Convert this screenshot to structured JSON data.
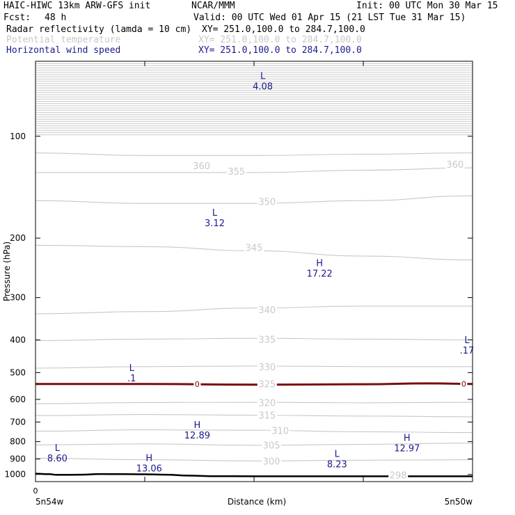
{
  "header": {
    "title": "HAIC-HIWC 13km ARW-GFS init",
    "org": "NCAR/MMM",
    "init": "Init: 00 UTC Mon 30 Mar 15",
    "fcst_label": "Fcst:",
    "fcst_value": "48 h",
    "valid": "Valid: 00 UTC Wed 01 Apr 15 (21 LST Tue 31 Mar 15)",
    "fields": [
      {
        "name": "Radar reflectivity (lamda = 10 cm)",
        "xy": "XY= 251.0,100.0 to 284.7,100.0",
        "color": "#000000"
      },
      {
        "name": "Potential temperature",
        "xy": "XY= 251.0,100.0 to 284.7,100.0",
        "color": "#c8c8c8"
      },
      {
        "name": "Horizontal wind speed",
        "xy": "XY= 251.0,100.0 to 284.7,100.0",
        "color": "#1a1a8c"
      }
    ]
  },
  "chart_data": {
    "type": "line",
    "title": "",
    "ylabel": "Pressure (hPa)",
    "xlabel": "Distance (km)",
    "y_scale": "log",
    "y_inverted": true,
    "ylim": [
      1050,
      60
    ],
    "xlim": [
      0,
      100
    ],
    "y_ticks": [
      100,
      200,
      300,
      400,
      500,
      600,
      700,
      800,
      900,
      1000
    ],
    "x_ticks": [
      0,
      25,
      50,
      75,
      100
    ],
    "x_tick_labels": [
      "0"
    ],
    "x_end_labels": {
      "left": "5n54w",
      "right": "5n50w"
    },
    "colors": {
      "theta": "#c8c8c8",
      "freezing": "#7a0c0c",
      "terrain": "#000000",
      "wind_labels": "#1a1a8c"
    },
    "theta_contours": [
      {
        "label": "300",
        "x": [
          0,
          25,
          50,
          75,
          100
        ],
        "p": [
          895,
          905,
          912,
          908,
          905
        ]
      },
      {
        "label": "305",
        "x": [
          0,
          25,
          50,
          75,
          100
        ],
        "p": [
          818,
          812,
          820,
          815,
          808
        ]
      },
      {
        "label": "310",
        "x": [
          0,
          25,
          50,
          75,
          100
        ],
        "p": [
          745,
          738,
          740,
          748,
          752
        ]
      },
      {
        "label": "315",
        "x": [
          0,
          25,
          50,
          75,
          100
        ],
        "p": [
          670,
          665,
          668,
          672,
          675
        ]
      },
      {
        "label": "320",
        "x": [
          0,
          25,
          50,
          75,
          100
        ],
        "p": [
          618,
          613,
          612,
          614,
          612
        ]
      },
      {
        "label": "325",
        "x": [
          0,
          25,
          50,
          75,
          100
        ],
        "p": [
          540,
          538,
          540,
          541,
          540
        ]
      },
      {
        "label": "330",
        "x": [
          0,
          25,
          50,
          75,
          100
        ],
        "p": [
          485,
          480,
          478,
          480,
          480
        ]
      },
      {
        "label": "335",
        "x": [
          0,
          25,
          50,
          75,
          100
        ],
        "p": [
          402,
          398,
          396,
          398,
          400
        ]
      },
      {
        "label": "340",
        "x": [
          0,
          25,
          50,
          75,
          100
        ],
        "p": [
          335,
          330,
          322,
          318,
          318
        ]
      },
      {
        "label": "345",
        "x": [
          0,
          25,
          50,
          75,
          100
        ],
        "p": [
          210,
          212,
          218,
          226,
          232
        ]
      },
      {
        "label": "350",
        "x": [
          0,
          25,
          50,
          75,
          100
        ],
        "p": [
          155,
          158,
          158,
          155,
          150
        ]
      },
      {
        "label": "355",
        "x": [
          0,
          25,
          50,
          75,
          100
        ],
        "p": [
          128,
          128,
          128,
          126,
          124
        ]
      },
      {
        "label": "360",
        "x": [
          0,
          25,
          50,
          75,
          100
        ],
        "p": [
          112,
          114,
          114,
          113,
          112
        ]
      }
    ],
    "theta_labels": [
      {
        "text": "360",
        "x": 38,
        "p": 122
      },
      {
        "text": "355",
        "x": 46,
        "p": 127
      },
      {
        "text": "360",
        "x": 96,
        "p": 121
      },
      {
        "text": "350",
        "x": 53,
        "p": 156
      },
      {
        "text": "345",
        "x": 50,
        "p": 213
      },
      {
        "text": "340",
        "x": 53,
        "p": 326
      },
      {
        "text": "335",
        "x": 53,
        "p": 398
      },
      {
        "text": "330",
        "x": 53,
        "p": 480
      },
      {
        "text": "325",
        "x": 53,
        "p": 539
      },
      {
        "text": "320",
        "x": 53,
        "p": 613
      },
      {
        "text": "315",
        "x": 53,
        "p": 668
      },
      {
        "text": "310",
        "x": 56,
        "p": 742
      },
      {
        "text": "305",
        "x": 54,
        "p": 819
      },
      {
        "text": "300",
        "x": 54,
        "p": 912
      },
      {
        "text": "298",
        "x": 83,
        "p": 1003
      }
    ],
    "freezing_level": {
      "label": "0",
      "x": [
        0,
        25,
        50,
        75,
        90,
        100
      ],
      "p": [
        540,
        540,
        543,
        541,
        538,
        540
      ],
      "label_positions": [
        37,
        98
      ]
    },
    "terrain": {
      "x": [
        0,
        3,
        5,
        10,
        15,
        20,
        25,
        30,
        35,
        40,
        50,
        75,
        100
      ],
      "p": [
        995,
        998,
        1003,
        1002,
        997,
        998,
        999,
        1002,
        1008,
        1012,
        1013,
        1013,
        1013
      ]
    },
    "wind_extrema": [
      {
        "kind": "L",
        "value": "4.08",
        "x": 52,
        "p": 67
      },
      {
        "kind": "L",
        "value": "3.12",
        "x": 41,
        "p": 170
      },
      {
        "kind": "H",
        "value": "17.22",
        "x": 65,
        "p": 240
      },
      {
        "kind": "L",
        "value": ".17",
        "x": 99,
        "p": 405
      },
      {
        "kind": "L",
        "value": ".1",
        "x": 22,
        "p": 490
      },
      {
        "kind": "H",
        "value": "12.89",
        "x": 37,
        "p": 722
      },
      {
        "kind": "H",
        "value": "12.97",
        "x": 85,
        "p": 788
      },
      {
        "kind": "L",
        "value": "8.60",
        "x": 5,
        "p": 845
      },
      {
        "kind": "L",
        "value": "8.23",
        "x": 69,
        "p": 880
      },
      {
        "kind": "H",
        "value": "13.06",
        "x": 26,
        "p": 905
      }
    ],
    "top_band": {
      "p_from": 60,
      "p_to": 100
    }
  }
}
